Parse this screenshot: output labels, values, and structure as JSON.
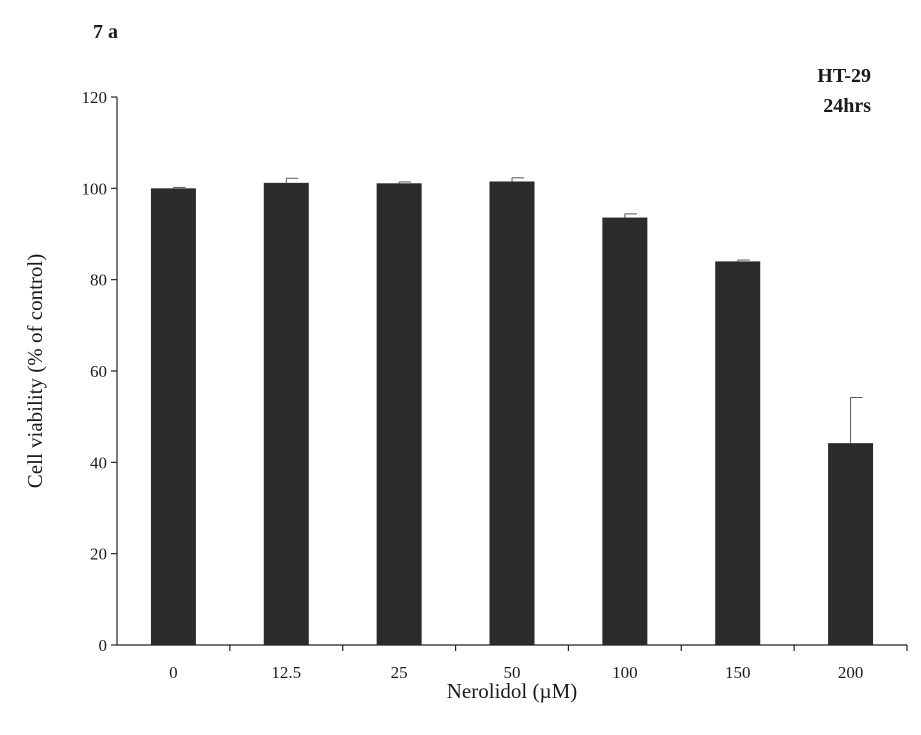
{
  "panel_label": "7 a",
  "annotations": [
    "HT-29",
    "24hrs"
  ],
  "chart_data": {
    "type": "bar",
    "categories": [
      "0",
      "12.5",
      "25",
      "50",
      "100",
      "150",
      "200"
    ],
    "values": [
      100,
      101.2,
      101.1,
      101.5,
      93.6,
      84.0,
      44.2
    ],
    "errors": [
      0.2,
      1.0,
      0.3,
      0.8,
      0.8,
      0.3,
      10.0
    ],
    "xlabel": "Nerolidol (µM)",
    "ylabel": "Cell viability (% of control)",
    "ylim": [
      0,
      120
    ],
    "yticks": [
      0,
      20,
      40,
      60,
      80,
      100,
      120
    ],
    "grid": false,
    "bar_color": "#2b2b2b"
  }
}
